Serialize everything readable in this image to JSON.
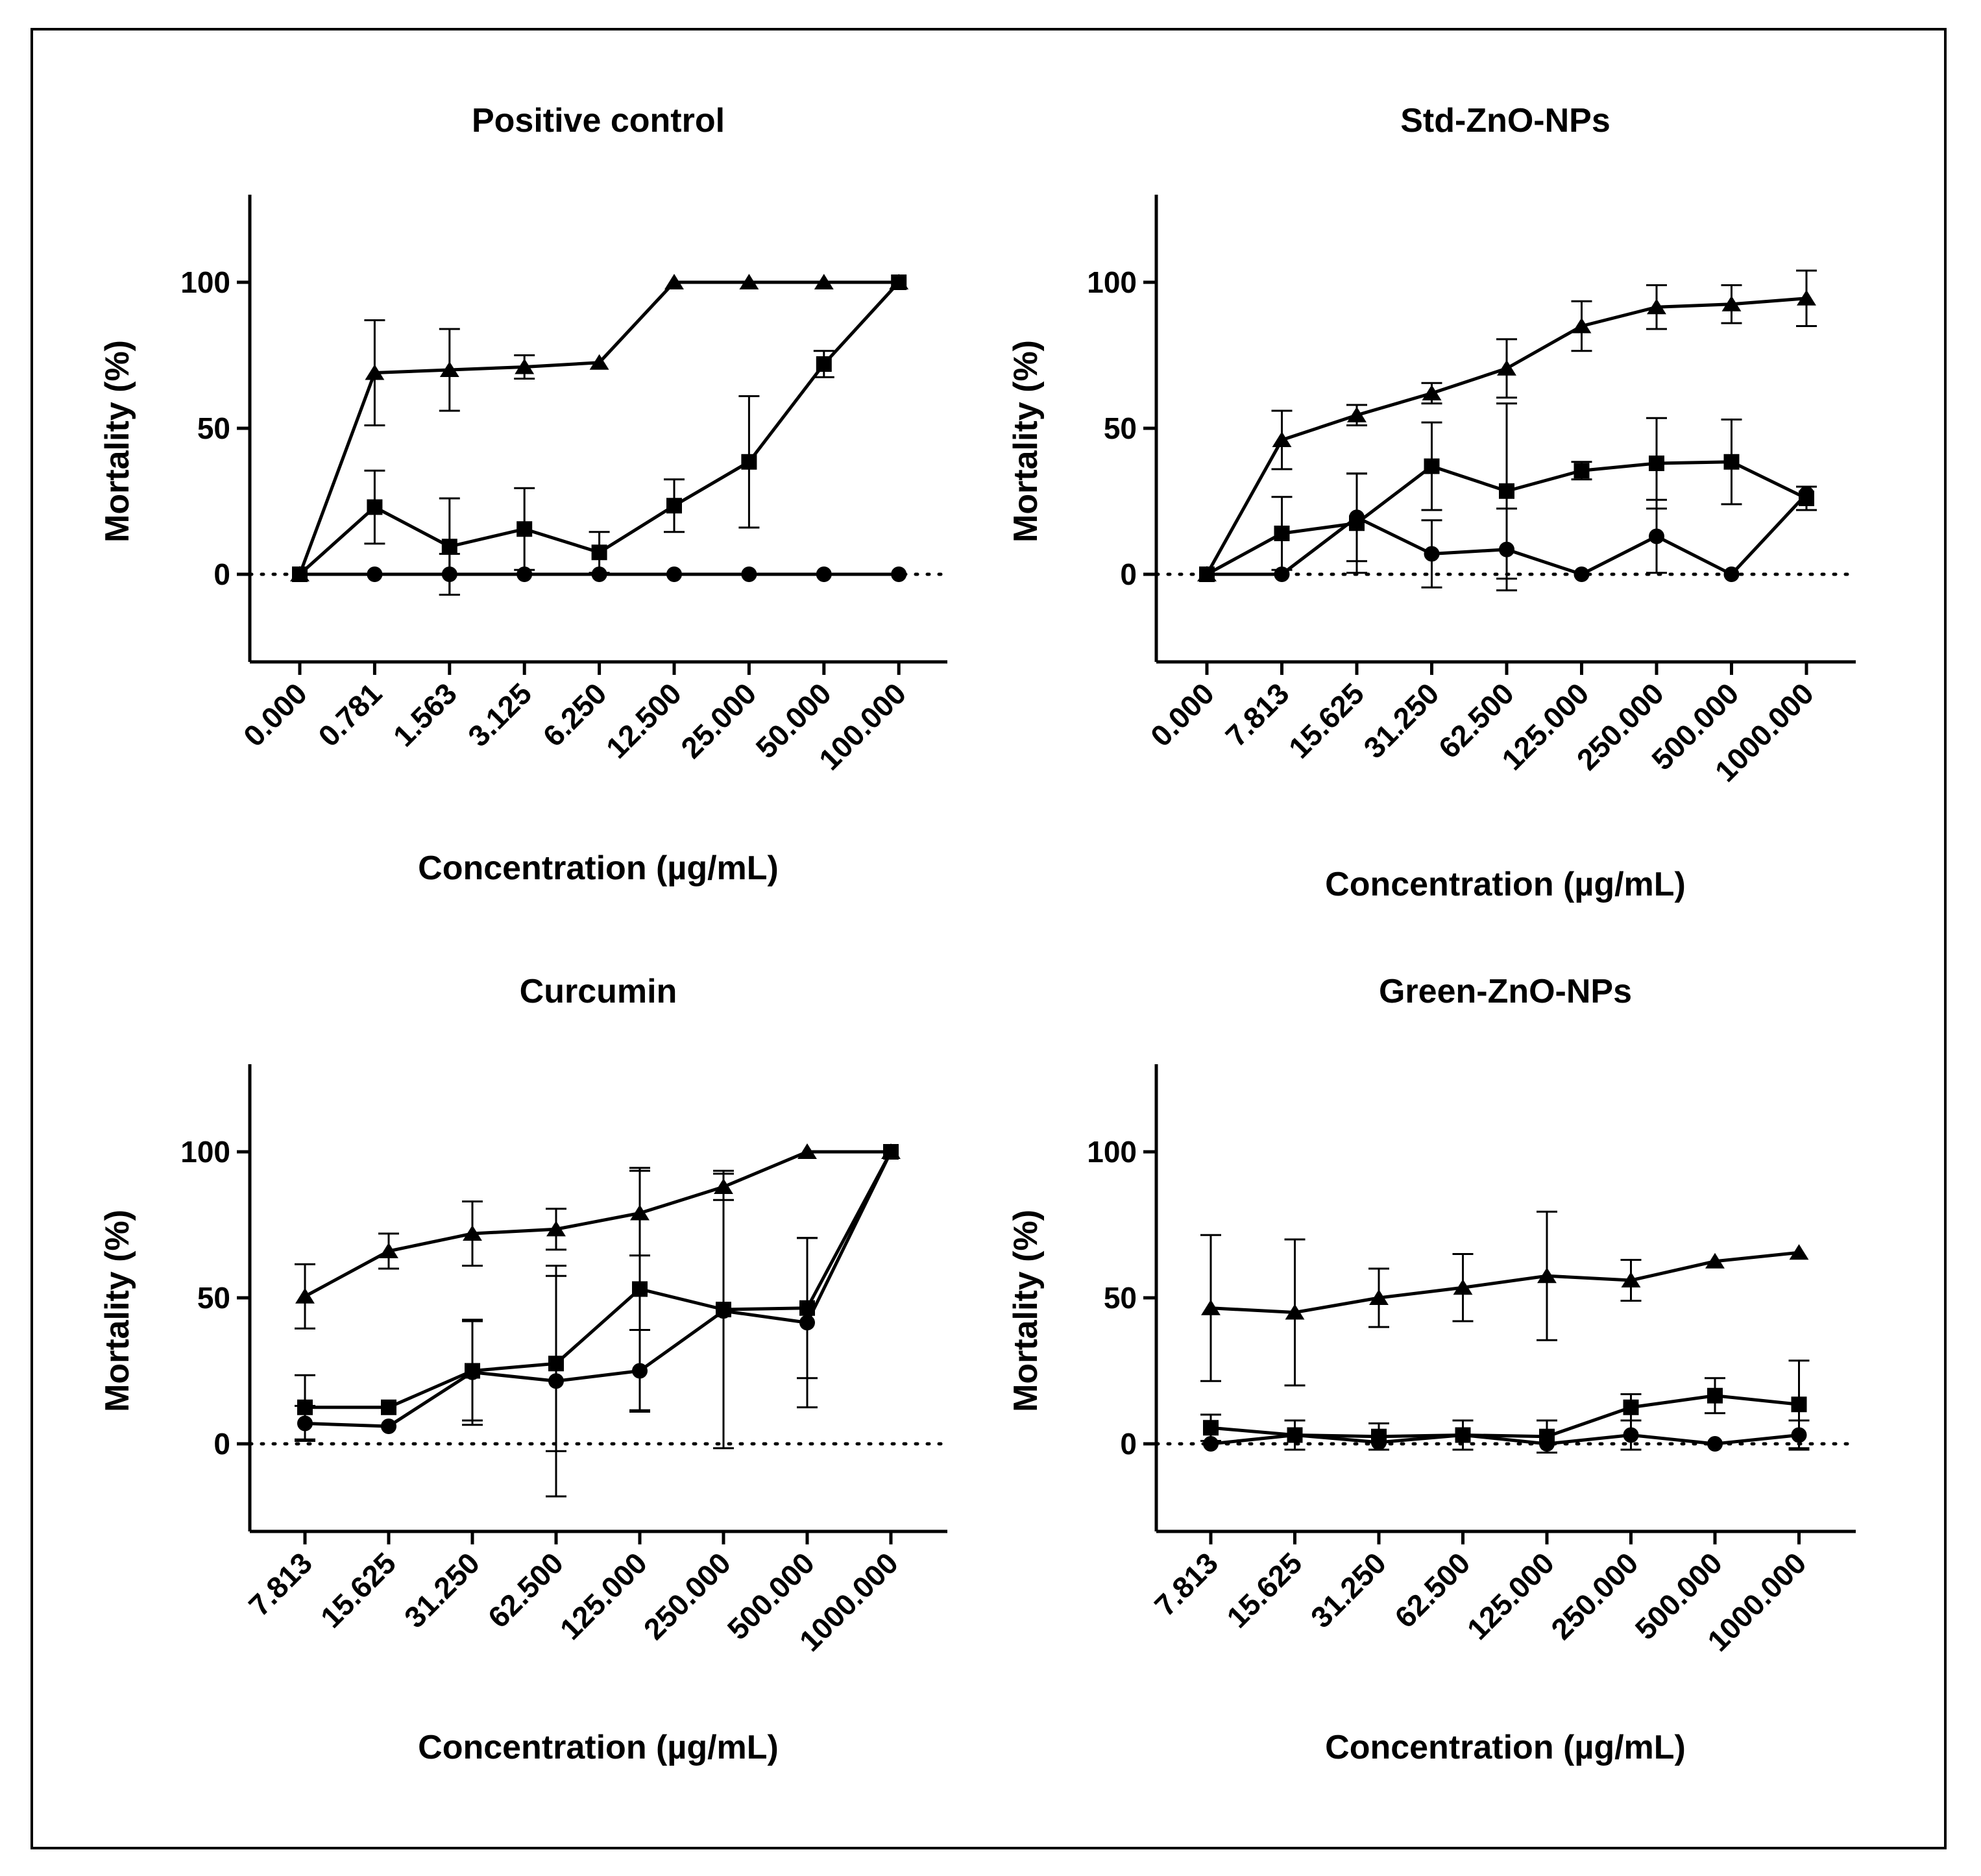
{
  "chart_data": [
    {
      "type": "line",
      "title": "Positive control",
      "xlabel": "Concentration (µg/mL)",
      "ylabel": "Mortality (%)",
      "ylim": [
        -30,
        130
      ],
      "yticks": [
        "0",
        "50",
        "100"
      ],
      "categories": [
        "0.000",
        "0.781",
        "1.563",
        "3.125",
        "6.250",
        "12.500",
        "25.000",
        "50.000",
        "100.000"
      ],
      "reference_line": 0,
      "series": [
        {
          "marker": "triangle",
          "values": [
            0,
            69,
            70,
            71,
            72.5,
            100,
            100,
            100,
            100
          ],
          "errors": [
            0,
            18,
            14,
            4,
            0,
            0,
            0,
            0,
            0
          ]
        },
        {
          "marker": "square",
          "values": [
            0,
            23,
            9.5,
            15.5,
            7.5,
            23.5,
            38.5,
            72,
            100
          ],
          "errors": [
            0,
            12.5,
            16.5,
            14,
            7,
            9,
            22.5,
            4.5,
            0
          ]
        },
        {
          "marker": "circle",
          "values": [
            0,
            0,
            0,
            0,
            0,
            0,
            0,
            0,
            0
          ],
          "errors": [
            0,
            0,
            7,
            0,
            0,
            0,
            0,
            0,
            0
          ]
        }
      ]
    },
    {
      "type": "line",
      "title": "Std-ZnO-NPs",
      "xlabel": "Concentration (µg/mL)",
      "ylabel": "Mortality (%)",
      "ylim": [
        -30,
        130
      ],
      "yticks": [
        "0",
        "50",
        "100"
      ],
      "categories": [
        "0.000",
        "7.813",
        "15.625",
        "31.250",
        "62.500",
        "125.000",
        "250.000",
        "500.000",
        "1000.000"
      ],
      "reference_line": 0,
      "series": [
        {
          "marker": "triangle",
          "values": [
            0,
            46,
            54.5,
            62,
            70.5,
            85,
            91.5,
            92.5,
            94.5
          ],
          "errors": [
            0,
            10,
            3.5,
            3.5,
            10,
            8.5,
            7.5,
            6.5,
            9.5
          ]
        },
        {
          "marker": "square",
          "values": [
            0,
            14,
            17.5,
            37,
            28.5,
            35.5,
            38,
            38.5,
            26
          ],
          "errors": [
            0,
            12.5,
            17,
            15,
            30,
            3,
            15.5,
            14.5,
            4
          ]
        },
        {
          "marker": "circle",
          "values": [
            0,
            0,
            19.5,
            7,
            8.5,
            0,
            13,
            0,
            27.5
          ],
          "errors": [
            0,
            0,
            15,
            11.5,
            14,
            0,
            12.5,
            0,
            0
          ]
        }
      ]
    },
    {
      "type": "line",
      "title": "Curcumin",
      "xlabel": "Concentration (µg/mL)",
      "ylabel": "Mortality (%)",
      "ylim": [
        -30,
        130
      ],
      "yticks": [
        "0",
        "50",
        "100"
      ],
      "categories": [
        "7.813",
        "15.625",
        "31.250",
        "62.500",
        "125.000",
        "250.000",
        "500.000",
        "1000.000"
      ],
      "reference_line": 0,
      "series": [
        {
          "marker": "triangle",
          "values": [
            50.5,
            66,
            72,
            73.5,
            79,
            88,
            100,
            100
          ],
          "errors": [
            11,
            6,
            11,
            7,
            14.5,
            4.5,
            0,
            0
          ]
        },
        {
          "marker": "square",
          "values": [
            12.5,
            12.5,
            25,
            27.5,
            53,
            46,
            46.5,
            100
          ],
          "errors": [
            11,
            0,
            17,
            30,
            41.5,
            47.5,
            24,
            0
          ]
        },
        {
          "marker": "circle",
          "values": [
            7,
            6,
            24.5,
            21.5,
            25,
            45.5,
            41.5,
            100
          ],
          "errors": [
            6,
            0,
            18,
            39.5,
            14,
            0,
            29,
            0
          ]
        }
      ]
    },
    {
      "type": "line",
      "title": "Green-ZnO-NPs",
      "xlabel": "Concentration (µg/mL)",
      "ylabel": "Mortality (%)",
      "ylim": [
        -30,
        130
      ],
      "yticks": [
        "0",
        "50",
        "100"
      ],
      "categories": [
        "7.813",
        "15.625",
        "31.250",
        "62.500",
        "125.000",
        "250.000",
        "500.000",
        "1000.000"
      ],
      "reference_line": 0,
      "series": [
        {
          "marker": "triangle",
          "values": [
            46.5,
            45,
            50,
            53.5,
            57.5,
            56,
            62.5,
            65.5
          ],
          "errors": [
            25,
            25,
            10,
            11.5,
            22,
            7,
            0,
            0
          ]
        },
        {
          "marker": "square",
          "values": [
            5.5,
            3,
            2.5,
            3,
            2.5,
            12.5,
            16.5,
            13.5
          ],
          "errors": [
            4.5,
            5,
            4.5,
            5,
            5.5,
            4.5,
            6,
            15
          ]
        },
        {
          "marker": "circle",
          "values": [
            0,
            3,
            0.5,
            3,
            0,
            3,
            0,
            3
          ],
          "errors": [
            0,
            0,
            0,
            0,
            0,
            5,
            0,
            5
          ]
        }
      ]
    }
  ]
}
